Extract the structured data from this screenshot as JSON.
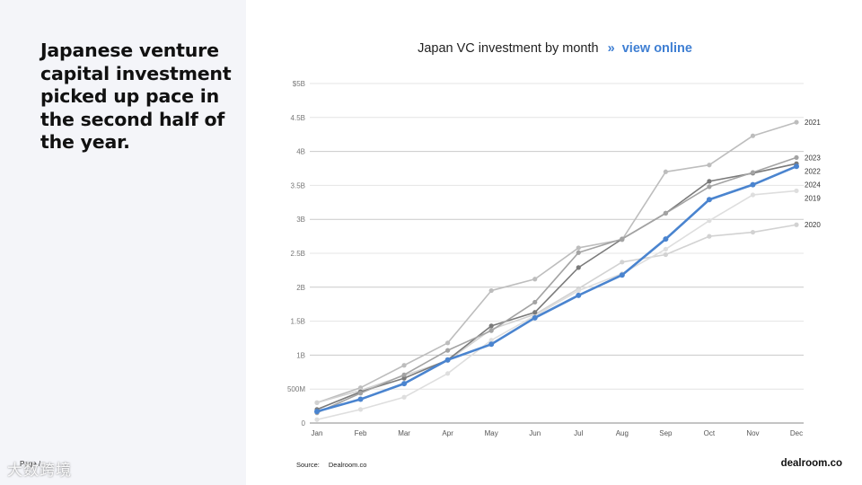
{
  "headline": "Japanese venture capital investment picked up pace in the second half of the year.",
  "title": {
    "text": "Japan VC investment by month",
    "separator": "»",
    "link": "view online"
  },
  "footer": {
    "source_label": "Source:",
    "source_value": "Dealroom.co",
    "page_label": "Page /",
    "brand": "dealroom.co",
    "watermark": "大数跨境"
  },
  "chart_data": {
    "type": "line",
    "title": "Japan VC investment by month",
    "xlabel": "",
    "ylabel": "",
    "categories": [
      "Jan",
      "Feb",
      "Mar",
      "Apr",
      "May",
      "Jun",
      "Jul",
      "Aug",
      "Sep",
      "Oct",
      "Nov",
      "Dec"
    ],
    "ylim": [
      0,
      5000000000
    ],
    "yticks": [
      {
        "value": 0,
        "label": "0"
      },
      {
        "value": 500000000,
        "label": "500M"
      },
      {
        "value": 1000000000,
        "label": "1B"
      },
      {
        "value": 1500000000,
        "label": "1.5B"
      },
      {
        "value": 2000000000,
        "label": "2B"
      },
      {
        "value": 2500000000,
        "label": "2.5B"
      },
      {
        "value": 3000000000,
        "label": "3B"
      },
      {
        "value": 3500000000,
        "label": "3.5B"
      },
      {
        "value": 4000000000,
        "label": "4B"
      },
      {
        "value": 4500000000,
        "label": "4.5B"
      },
      {
        "value": 5000000000,
        "label": "$5B"
      }
    ],
    "grid": true,
    "legend": "right-end labels",
    "series": [
      {
        "name": "2021",
        "color": "#bdbdbd",
        "values": [
          300000000,
          520000000,
          850000000,
          1180000000,
          1950000000,
          2120000000,
          2580000000,
          2700000000,
          3700000000,
          3800000000,
          4230000000,
          4430000000
        ]
      },
      {
        "name": "2020",
        "color": "#d2d2d2",
        "values": [
          300000000,
          480000000,
          700000000,
          920000000,
          1380000000,
          1600000000,
          1980000000,
          2370000000,
          2480000000,
          2750000000,
          2810000000,
          2920000000
        ]
      },
      {
        "name": "2019",
        "color": "#dedede",
        "values": [
          50000000,
          200000000,
          380000000,
          730000000,
          1220000000,
          1580000000,
          1950000000,
          2200000000,
          2560000000,
          2980000000,
          3360000000,
          3420000000
        ]
      },
      {
        "name": "2022",
        "color": "#7a7a7a",
        "values": [
          200000000,
          460000000,
          660000000,
          930000000,
          1430000000,
          1630000000,
          2290000000,
          2710000000,
          3090000000,
          3560000000,
          3680000000,
          3820000000
        ]
      },
      {
        "name": "2023",
        "color": "#a3a3a3",
        "values": [
          150000000,
          440000000,
          710000000,
          1070000000,
          1360000000,
          1780000000,
          2510000000,
          2710000000,
          3090000000,
          3480000000,
          3690000000,
          3910000000
        ]
      },
      {
        "name": "2024",
        "color": "#4a84cf",
        "values": [
          170000000,
          350000000,
          580000000,
          930000000,
          1160000000,
          1550000000,
          1880000000,
          2180000000,
          2710000000,
          3290000000,
          3510000000,
          3780000000
        ],
        "highlight": true
      }
    ],
    "end_labels": [
      "2021",
      "2023",
      "2022",
      "2024",
      "2019",
      "2020"
    ]
  }
}
